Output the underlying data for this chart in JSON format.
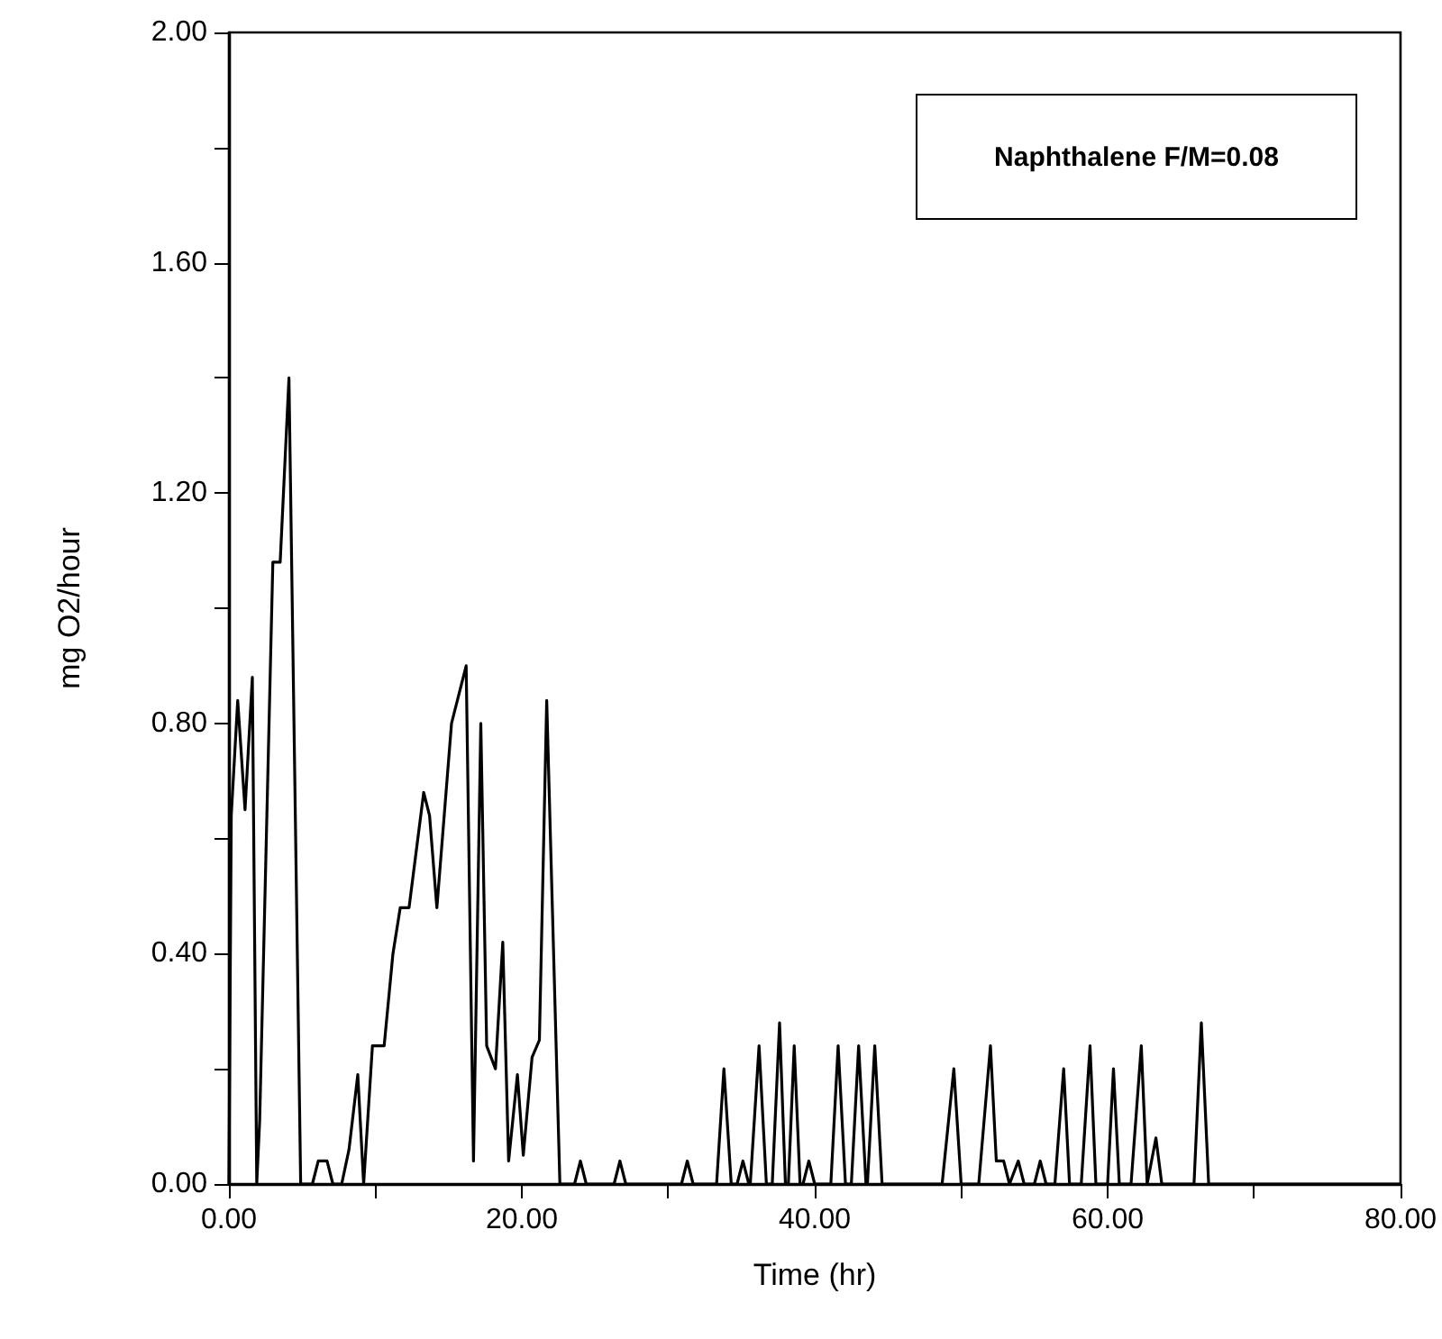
{
  "chart_data": {
    "type": "line",
    "xlabel": "Time (hr)",
    "ylabel": "mg O2/hour",
    "annotations": [
      "Naphthalene F/M=0.08"
    ],
    "x": [
      0,
      0.16,
      0.6,
      1.1,
      1.6,
      1.9,
      2.1,
      3.0,
      3.5,
      4.1,
      4.9,
      5.7,
      6.1,
      6.7,
      7.1,
      7.7,
      8.2,
      8.8,
      9.2,
      9.8,
      10.6,
      11.2,
      11.7,
      12.3,
      13.3,
      13.7,
      14.2,
      15.2,
      16.2,
      16.7,
      17.2,
      17.6,
      18.2,
      18.7,
      19.1,
      19.7,
      20.1,
      20.7,
      21.2,
      21.7,
      22.6,
      23.6,
      24.0,
      24.4,
      26.3,
      26.7,
      27.1,
      30.9,
      31.3,
      31.7,
      33.3,
      33.8,
      34.3,
      34.7,
      35.1,
      35.5,
      35.6,
      36.2,
      36.7,
      37.1,
      37.6,
      38.0,
      38.2,
      38.6,
      39.0,
      39.2,
      39.6,
      40.0,
      41.1,
      41.6,
      42.1,
      42.5,
      43.0,
      43.5,
      43.6,
      44.1,
      44.6,
      48.7,
      49.5,
      50.0,
      51.2,
      52.0,
      52.4,
      52.9,
      53.3,
      53.9,
      54.3,
      55.0,
      55.4,
      55.8,
      56.4,
      57.0,
      57.4,
      58.2,
      58.8,
      59.2,
      60.0,
      60.4,
      60.8,
      61.6,
      62.3,
      62.7,
      63.3,
      63.7,
      65.9,
      66.4,
      66.9,
      80
    ],
    "values": [
      0,
      0.64,
      0.84,
      0.65,
      0.88,
      0,
      0.11,
      1.08,
      1.08,
      1.4,
      0,
      0,
      0.04,
      0.04,
      0,
      0,
      0.06,
      0.19,
      0,
      0.24,
      0.24,
      0.4,
      0.48,
      0.48,
      0.68,
      0.64,
      0.48,
      0.8,
      0.9,
      0.04,
      0.8,
      0.24,
      0.2,
      0.42,
      0.04,
      0.19,
      0.05,
      0.22,
      0.25,
      0.84,
      0,
      0,
      0.04,
      0,
      0,
      0.04,
      0,
      0,
      0.04,
      0,
      0,
      0.2,
      0,
      0,
      0.04,
      0,
      0,
      0.24,
      0,
      0,
      0.28,
      0,
      0,
      0.24,
      0,
      0,
      0.04,
      0,
      0,
      0.24,
      0,
      0,
      0.24,
      0,
      0,
      0.24,
      0,
      0,
      0.2,
      0,
      0,
      0.24,
      0.04,
      0.04,
      0,
      0.04,
      0,
      0,
      0.04,
      0,
      0,
      0.2,
      0,
      0,
      0.24,
      0,
      0,
      0.2,
      0,
      0,
      0.24,
      0,
      0.08,
      0,
      0,
      0.28,
      0,
      0
    ],
    "color": "#000000",
    "xlim": [
      0,
      80
    ],
    "xticks": [
      {
        "value": 0,
        "label": "0.00"
      },
      {
        "value": 10,
        "label": null
      },
      {
        "value": 20,
        "label": "20.00"
      },
      {
        "value": 30,
        "label": null
      },
      {
        "value": 40,
        "label": "40.00"
      },
      {
        "value": 50,
        "label": null
      },
      {
        "value": 60,
        "label": "60.00"
      },
      {
        "value": 70,
        "label": null
      },
      {
        "value": 80,
        "label": "80.00"
      }
    ],
    "ylim": [
      0,
      2
    ],
    "yticks": [
      {
        "value": 0,
        "label": "0.00"
      },
      {
        "value": 0.2,
        "label": null
      },
      {
        "value": 0.4,
        "label": "0.40"
      },
      {
        "value": 0.6,
        "label": null
      },
      {
        "value": 0.8,
        "label": "0.80"
      },
      {
        "value": 1.0,
        "label": null
      },
      {
        "value": 1.2,
        "label": "1.20"
      },
      {
        "value": 1.4,
        "label": null
      },
      {
        "value": 1.6,
        "label": "1.60"
      },
      {
        "value": 1.8,
        "label": null
      },
      {
        "value": 2.0,
        "label": "2.00"
      }
    ],
    "marker": "none",
    "line_style": "solid",
    "grid": false
  }
}
